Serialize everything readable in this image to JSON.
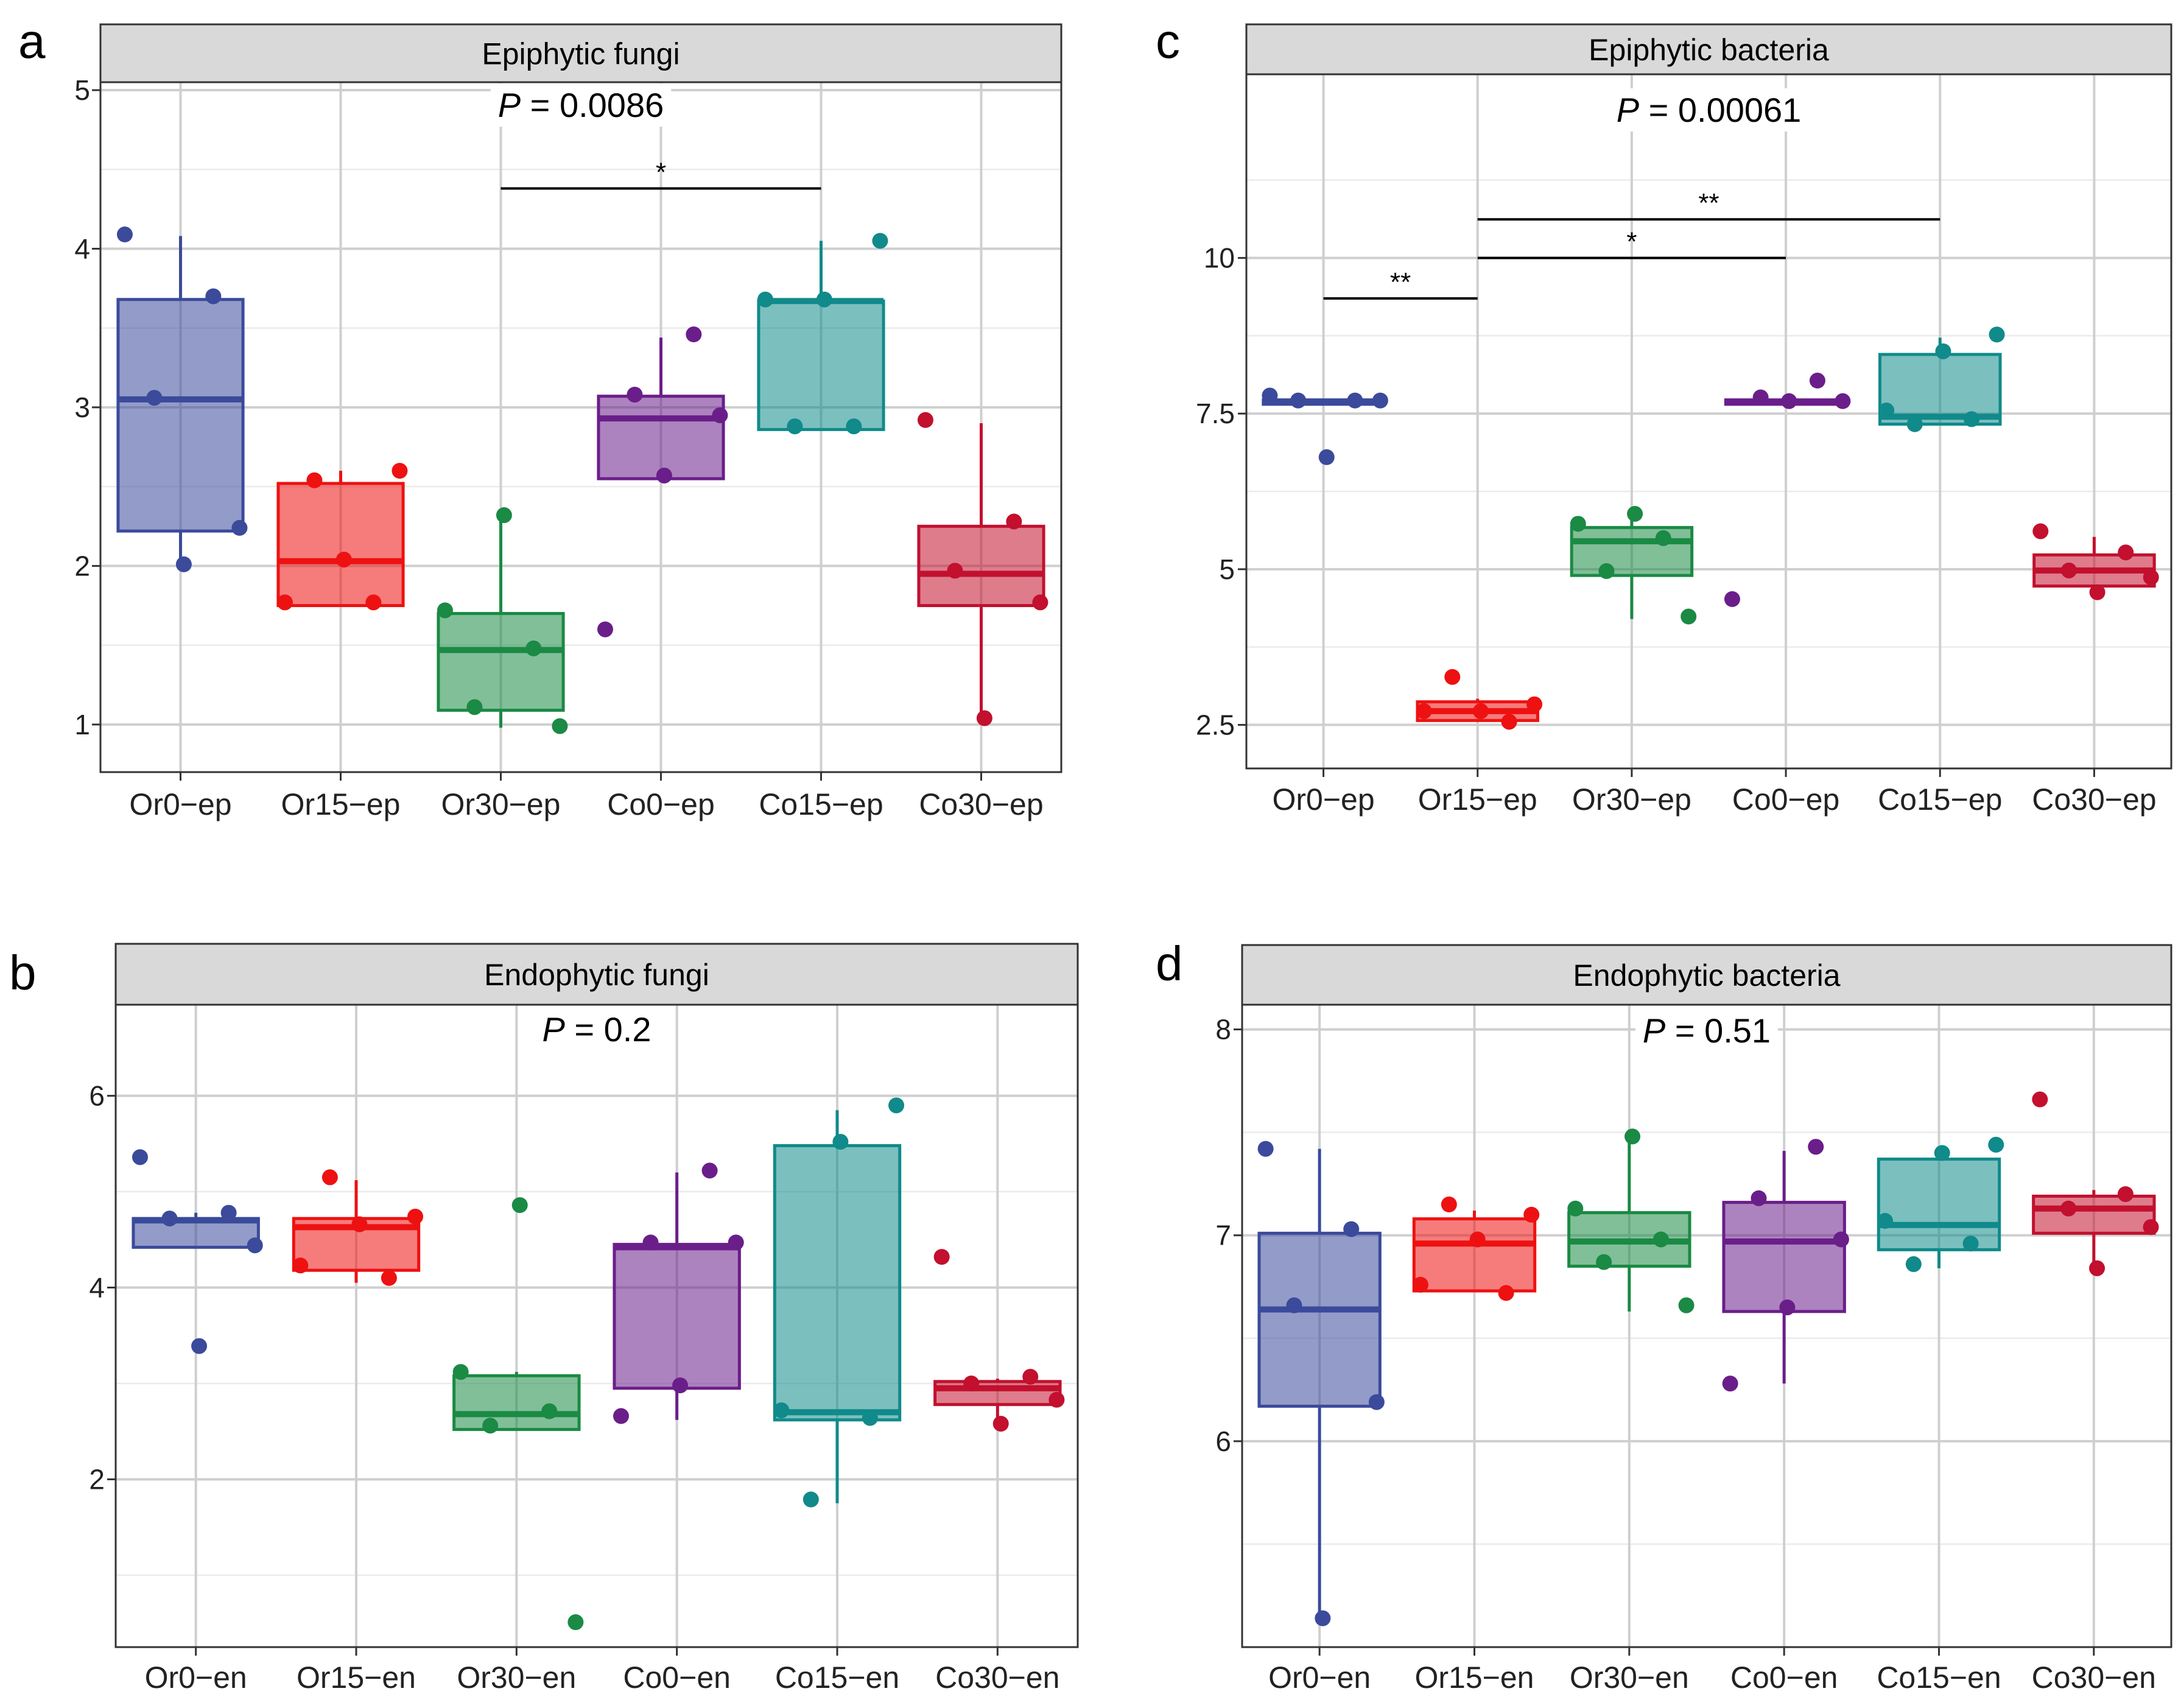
{
  "colors": {
    "Or0": "#3B4A9B",
    "Or15": "#EE1111",
    "Or30": "#1A8A44",
    "Co0": "#6A1E8A",
    "Co15": "#108A8A",
    "Co30": "#C2102E"
  },
  "chart_data": [
    {
      "type": "box",
      "panel": "a",
      "title": "Epiphytic fungi",
      "p_label": "P",
      "p_value": "= 0.0086",
      "categories": [
        "Or0−ep",
        "Or15−ep",
        "Or30−ep",
        "Co0−ep",
        "Co15−ep",
        "Co30−ep"
      ],
      "groups": [
        "Or0",
        "Or15",
        "Or30",
        "Co0",
        "Co15",
        "Co30"
      ],
      "ylim": [
        0.7,
        5.05
      ],
      "yticks": [
        1,
        2,
        3,
        4,
        5
      ],
      "ytick_labels": [
        "1",
        "2",
        "3",
        "4",
        "5"
      ],
      "boxes": [
        {
          "q1": 2.22,
          "median": 3.05,
          "q3": 3.68,
          "low": 2.0,
          "high": 4.08
        },
        {
          "q1": 1.75,
          "median": 2.03,
          "q3": 2.52,
          "low": 1.75,
          "high": 2.6
        },
        {
          "q1": 1.09,
          "median": 1.47,
          "q3": 1.7,
          "low": 0.98,
          "high": 2.3
        },
        {
          "q1": 2.55,
          "median": 2.93,
          "q3": 3.07,
          "low": 2.55,
          "high": 3.44
        },
        {
          "q1": 2.86,
          "median": 3.67,
          "q3": 3.67,
          "low": 2.86,
          "high": 4.05
        },
        {
          "q1": 1.75,
          "median": 1.95,
          "q3": 2.25,
          "low": 1.02,
          "high": 2.9
        }
      ],
      "points": [
        [
          4.09,
          3.7,
          3.06,
          2.24,
          2.01
        ],
        [
          2.54,
          2.6,
          2.04,
          1.77,
          1.77
        ],
        [
          2.32,
          1.72,
          1.48,
          1.11,
          0.99
        ],
        [
          3.46,
          3.08,
          2.95,
          2.57,
          1.6
        ],
        [
          4.05,
          3.68,
          3.68,
          2.88,
          2.88
        ],
        [
          2.92,
          2.28,
          1.97,
          1.77,
          1.04
        ]
      ],
      "brackets": [
        {
          "from": 2,
          "to": 4,
          "y": 4.38,
          "label": "*"
        }
      ]
    },
    {
      "type": "box",
      "panel": "b",
      "title": "Endophytic fungi",
      "p_label": "P",
      "p_value": "= 0.2",
      "categories": [
        "Or0−en",
        "Or15−en",
        "Or30−en",
        "Co0−en",
        "Co15−en",
        "Co30−en"
      ],
      "groups": [
        "Or0",
        "Or15",
        "Or30",
        "Co0",
        "Co15",
        "Co30"
      ],
      "ylim": [
        0.25,
        6.95
      ],
      "yticks": [
        2,
        4,
        6
      ],
      "ytick_labels": [
        "2",
        "4",
        "6"
      ],
      "boxes": [
        {
          "q1": 4.42,
          "median": 4.7,
          "q3": 4.72,
          "low": 4.42,
          "high": 4.78
        },
        {
          "q1": 4.18,
          "median": 4.63,
          "q3": 4.72,
          "low": 4.05,
          "high": 5.12
        },
        {
          "q1": 2.52,
          "median": 2.68,
          "q3": 3.08,
          "low": 2.52,
          "high": 3.12
        },
        {
          "q1": 2.95,
          "median": 4.42,
          "q3": 4.45,
          "low": 2.62,
          "high": 5.2
        },
        {
          "q1": 2.62,
          "median": 2.7,
          "q3": 5.48,
          "low": 1.75,
          "high": 5.85
        },
        {
          "q1": 2.78,
          "median": 2.95,
          "q3": 3.02,
          "low": 2.55,
          "high": 3.05
        }
      ],
      "points": [
        [
          5.36,
          4.78,
          4.72,
          4.44,
          3.39
        ],
        [
          5.15,
          4.74,
          4.66,
          4.23,
          4.1
        ],
        [
          4.86,
          3.12,
          2.71,
          2.56,
          0.51
        ],
        [
          5.22,
          4.47,
          4.47,
          2.98,
          2.66
        ],
        [
          5.9,
          5.52,
          2.72,
          2.64,
          1.79
        ],
        [
          4.32,
          3.07,
          3.0,
          2.83,
          2.58
        ]
      ],
      "brackets": []
    },
    {
      "type": "box",
      "panel": "c",
      "title": "Epiphytic bacteria",
      "p_label": "P",
      "p_value": "= 0.00061",
      "categories": [
        "Or0−ep",
        "Or15−ep",
        "Or30−ep",
        "Co0−ep",
        "Co15−ep",
        "Co30−ep"
      ],
      "groups": [
        "Or0",
        "Or15",
        "Or30",
        "Co0",
        "Co15",
        "Co30"
      ],
      "ylim": [
        1.8,
        12.95
      ],
      "yticks": [
        2.5,
        5,
        7.5,
        10
      ],
      "ytick_labels": [
        "2.5",
        "5",
        "7.5",
        "10"
      ],
      "boxes": [
        {
          "q1": 7.65,
          "median": 7.69,
          "q3": 7.72,
          "low": 7.65,
          "high": 7.72
        },
        {
          "q1": 2.57,
          "median": 2.72,
          "q3": 2.87,
          "low": 2.57,
          "high": 2.92
        },
        {
          "q1": 4.9,
          "median": 5.45,
          "q3": 5.67,
          "low": 4.2,
          "high": 5.82
        },
        {
          "q1": 7.65,
          "median": 7.69,
          "q3": 7.72,
          "low": 7.65,
          "high": 7.72
        },
        {
          "q1": 7.33,
          "median": 7.45,
          "q3": 8.45,
          "low": 7.33,
          "high": 8.72
        },
        {
          "q1": 4.73,
          "median": 4.98,
          "q3": 5.23,
          "low": 4.65,
          "high": 5.52
        }
      ],
      "points": [
        [
          7.79,
          7.71,
          7.71,
          7.71,
          6.8
        ],
        [
          3.27,
          2.83,
          2.72,
          2.72,
          2.55
        ],
        [
          5.89,
          5.73,
          5.5,
          4.97,
          4.24
        ],
        [
          8.03,
          7.76,
          7.7,
          7.7,
          4.52
        ],
        [
          8.77,
          8.5,
          7.55,
          7.41,
          7.33
        ],
        [
          5.61,
          5.27,
          4.98,
          4.87,
          4.63
        ]
      ],
      "brackets": [
        {
          "from": 0,
          "to": 1,
          "y": 9.35,
          "label": "**"
        },
        {
          "from": 1,
          "to": 3,
          "y": 10.0,
          "label": "*"
        },
        {
          "from": 1,
          "to": 4,
          "y": 10.62,
          "label": "**"
        }
      ]
    },
    {
      "type": "box",
      "panel": "d",
      "title": "Endophytic bacteria",
      "p_label": "P",
      "p_value": "= 0.51",
      "categories": [
        "Or0−en",
        "Or15−en",
        "Or30−en",
        "Co0−en",
        "Co15−en",
        "Co30−en"
      ],
      "groups": [
        "Or0",
        "Or15",
        "Or30",
        "Co0",
        "Co15",
        "Co30"
      ],
      "ylim": [
        5.0,
        8.12
      ],
      "yticks": [
        6,
        7,
        8
      ],
      "ytick_labels": [
        "6",
        "7",
        "8"
      ],
      "boxes": [
        {
          "q1": 6.17,
          "median": 6.64,
          "q3": 7.01,
          "low": 5.13,
          "high": 7.42
        },
        {
          "q1": 6.73,
          "median": 6.96,
          "q3": 7.08,
          "low": 6.73,
          "high": 7.12
        },
        {
          "q1": 6.85,
          "median": 6.97,
          "q3": 7.11,
          "low": 6.63,
          "high": 7.45
        },
        {
          "q1": 6.63,
          "median": 6.97,
          "q3": 7.16,
          "low": 6.28,
          "high": 7.41
        },
        {
          "q1": 6.93,
          "median": 7.05,
          "q3": 7.37,
          "low": 6.84,
          "high": 7.42
        },
        {
          "q1": 7.01,
          "median": 7.13,
          "q3": 7.19,
          "low": 6.83,
          "high": 7.22
        }
      ],
      "points": [
        [
          7.42,
          7.03,
          6.66,
          6.19,
          5.14
        ],
        [
          7.15,
          7.1,
          6.98,
          6.76,
          6.72
        ],
        [
          7.48,
          7.13,
          6.98,
          6.87,
          6.66
        ],
        [
          7.43,
          7.18,
          6.98,
          6.65,
          6.28
        ],
        [
          7.44,
          7.4,
          7.07,
          6.96,
          6.86
        ],
        [
          7.66,
          7.2,
          7.13,
          7.04,
          6.84
        ]
      ],
      "brackets": []
    }
  ]
}
